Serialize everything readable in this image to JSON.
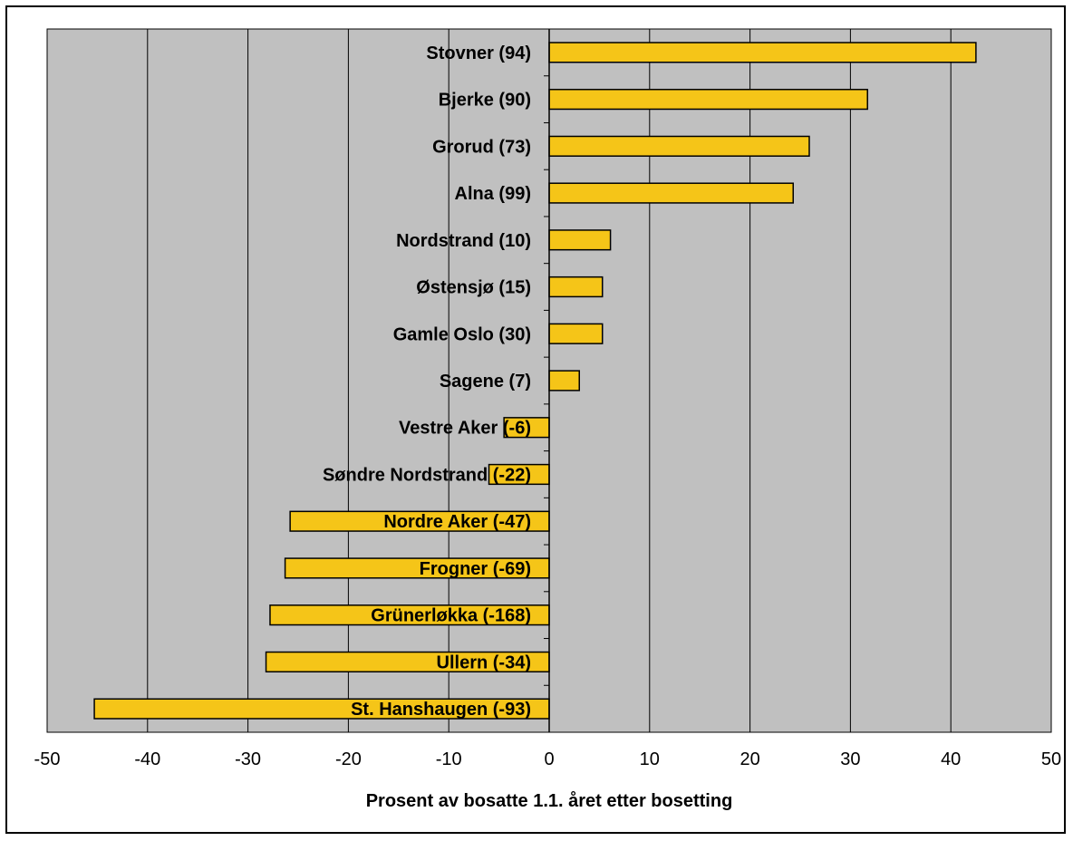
{
  "chart_data": {
    "type": "bar",
    "orientation": "horizontal",
    "title": "",
    "xlabel": "Prosent av bosatte 1.1. året etter bosetting",
    "ylabel": "",
    "xlim": [
      -50,
      50
    ],
    "xticks": [
      -50,
      -40,
      -30,
      -20,
      -10,
      0,
      10,
      20,
      30,
      40,
      50
    ],
    "grid": "vertical",
    "legend": "none",
    "colors": {
      "bar_fill": "#f5c518",
      "bar_stroke": "#000000",
      "plot_bg": "#c0c0c0"
    },
    "categories": [
      "Stovner (94)",
      "Bjerke (90)",
      "Grorud (73)",
      "Alna (99)",
      "Nordstrand (10)",
      "Østensjø (15)",
      "Gamle Oslo (30)",
      "Sagene (7)",
      "Vestre Aker (-6)",
      "Søndre Nordstrand (-22)",
      "Nordre Aker (-47)",
      "Frogner (-69)",
      "Grünerløkka (-168)",
      "Ullern (-34)",
      "St. Hanshaugen (-93)"
    ],
    "values": [
      42.5,
      31.7,
      25.9,
      24.3,
      6.1,
      5.3,
      5.3,
      3.0,
      -4.5,
      -6.0,
      -25.8,
      -26.3,
      -27.8,
      -28.2,
      -45.3
    ]
  }
}
